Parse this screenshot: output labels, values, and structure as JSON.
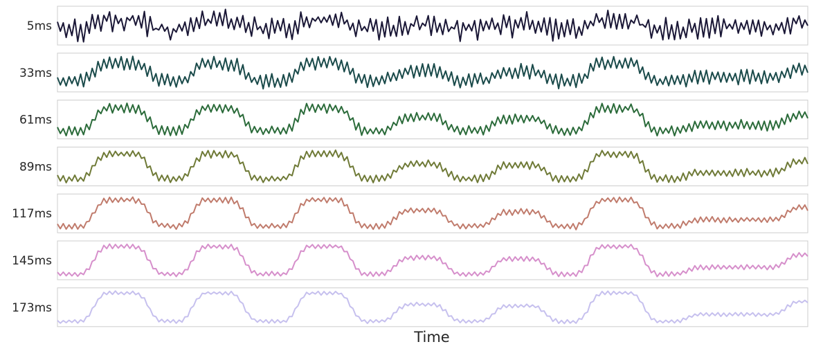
{
  "chart_data": {
    "type": "line",
    "title": "",
    "xlabel": "Time",
    "ylabel": "",
    "grid": false,
    "legend": "none",
    "n_samples": 260,
    "series": [
      {
        "name": "5ms",
        "color": "#1a1736",
        "high_freq_amp": 0.9,
        "smoothing": 0.05,
        "noise": 0.25
      },
      {
        "name": "33ms",
        "color": "#1a4a4a",
        "high_freq_amp": 0.55,
        "smoothing": 0.35,
        "noise": 0.08
      },
      {
        "name": "61ms",
        "color": "#2b6b3a",
        "high_freq_amp": 0.38,
        "smoothing": 0.55,
        "noise": 0.05
      },
      {
        "name": "89ms",
        "color": "#6f7a37",
        "high_freq_amp": 0.3,
        "smoothing": 0.7,
        "noise": 0.04
      },
      {
        "name": "117ms",
        "color": "#c07b6c",
        "high_freq_amp": 0.24,
        "smoothing": 0.8,
        "noise": 0.03
      },
      {
        "name": "145ms",
        "color": "#d68fcb",
        "high_freq_amp": 0.2,
        "smoothing": 0.87,
        "noise": 0.02
      },
      {
        "name": "173ms",
        "color": "#c6c0ee",
        "high_freq_amp": 0.16,
        "smoothing": 0.92,
        "noise": 0.02
      }
    ],
    "envelope": {
      "description_free": true,
      "levels": [
        {
          "start": 0.0,
          "end": 0.05,
          "level": 0.0
        },
        {
          "start": 0.05,
          "end": 0.12,
          "level": 1.0
        },
        {
          "start": 0.12,
          "end": 0.18,
          "level": 0.0
        },
        {
          "start": 0.18,
          "end": 0.25,
          "level": 1.0
        },
        {
          "start": 0.25,
          "end": 0.32,
          "level": 0.0
        },
        {
          "start": 0.32,
          "end": 0.39,
          "level": 1.0
        },
        {
          "start": 0.39,
          "end": 0.45,
          "level": 0.0
        },
        {
          "start": 0.45,
          "end": 0.52,
          "level": 0.6
        },
        {
          "start": 0.52,
          "end": 0.58,
          "level": 0.0
        },
        {
          "start": 0.58,
          "end": 0.65,
          "level": 0.55
        },
        {
          "start": 0.65,
          "end": 0.71,
          "level": 0.0
        },
        {
          "start": 0.71,
          "end": 0.78,
          "level": 1.0
        },
        {
          "start": 0.78,
          "end": 0.84,
          "level": 0.0
        },
        {
          "start": 0.84,
          "end": 0.97,
          "level": 0.25
        },
        {
          "start": 0.97,
          "end": 1.0,
          "level": 0.7
        }
      ]
    }
  }
}
